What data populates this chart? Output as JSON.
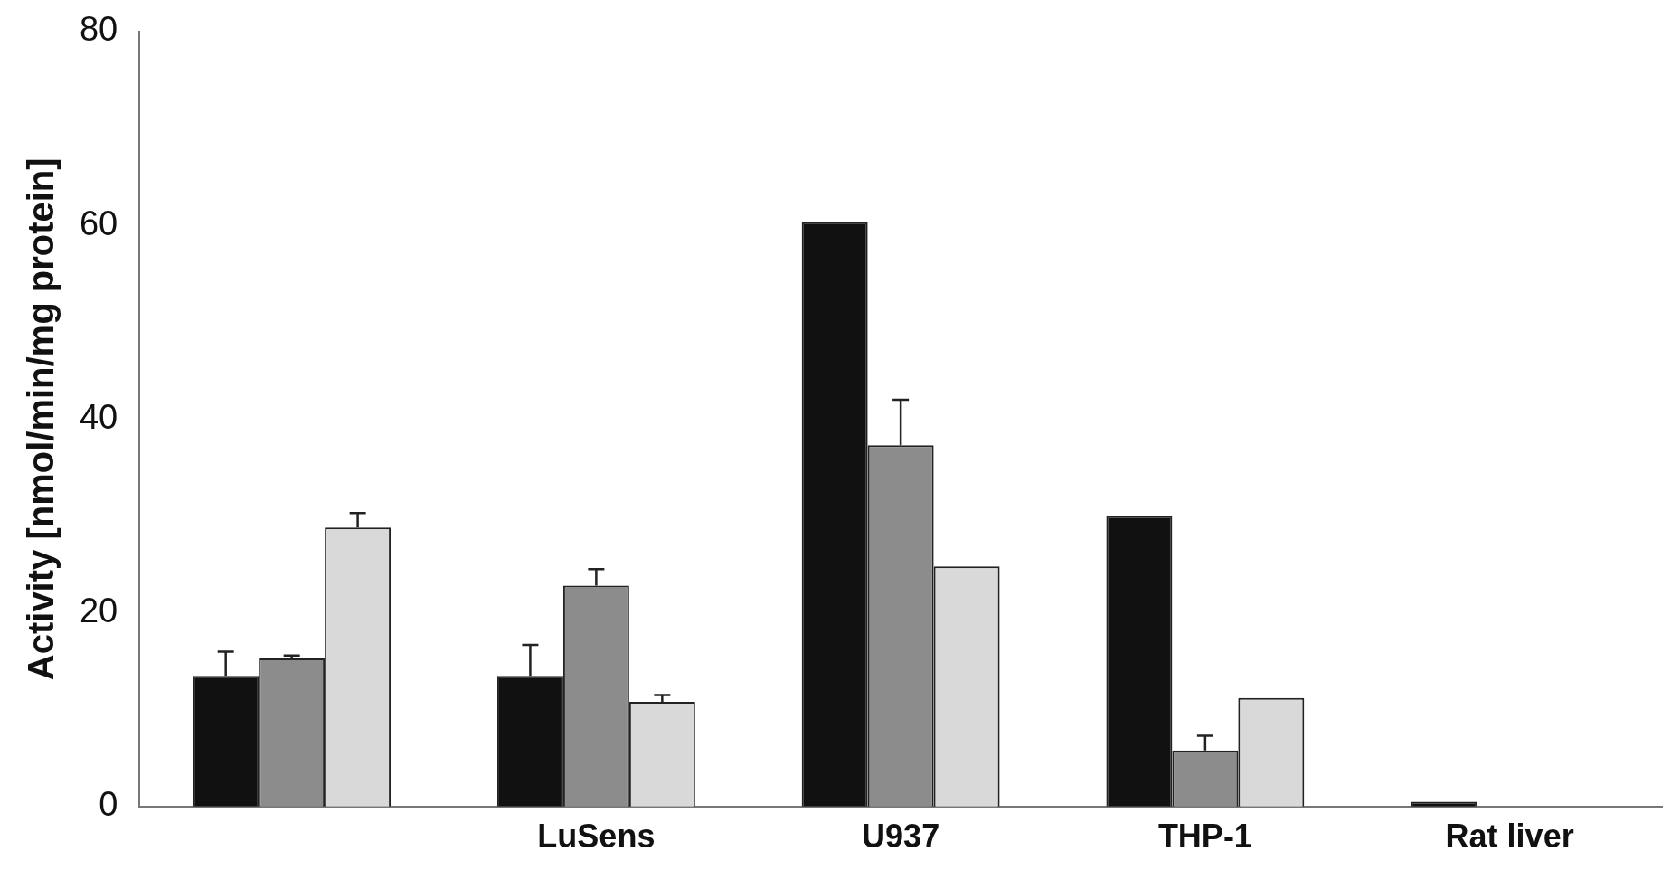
{
  "chart_data": {
    "type": "bar",
    "ylabel": "Activity [nmol/min/mg protein]",
    "categories": [
      null,
      "LuSens",
      "U937",
      "THP-1",
      "Rat liver"
    ],
    "series": [
      {
        "color": "#111111",
        "values": [
          13.5,
          13.5,
          60.3,
          30,
          0.5
        ],
        "errors": [
          [
            13.5,
            16
          ],
          [
            13.5,
            16.7
          ],
          null,
          null,
          null
        ]
      },
      {
        "color": "#8c8c8c",
        "values": [
          15.3,
          22.8,
          37.3,
          5.8,
          null
        ],
        "errors": [
          [
            15.3,
            15.6
          ],
          [
            22.8,
            24.5
          ],
          [
            37.3,
            42
          ],
          [
            5.8,
            7.3
          ],
          null
        ]
      },
      {
        "color": "#d9d9d9",
        "values": [
          28.8,
          10.8,
          24.8,
          11.2,
          null
        ],
        "errors": [
          [
            28.8,
            30.3
          ],
          [
            10.8,
            11.5
          ],
          null,
          null,
          null
        ]
      }
    ],
    "ylim": [
      0,
      80
    ],
    "yticks": [
      0,
      20,
      40,
      60,
      80
    ],
    "grid": false,
    "legend": false
  }
}
